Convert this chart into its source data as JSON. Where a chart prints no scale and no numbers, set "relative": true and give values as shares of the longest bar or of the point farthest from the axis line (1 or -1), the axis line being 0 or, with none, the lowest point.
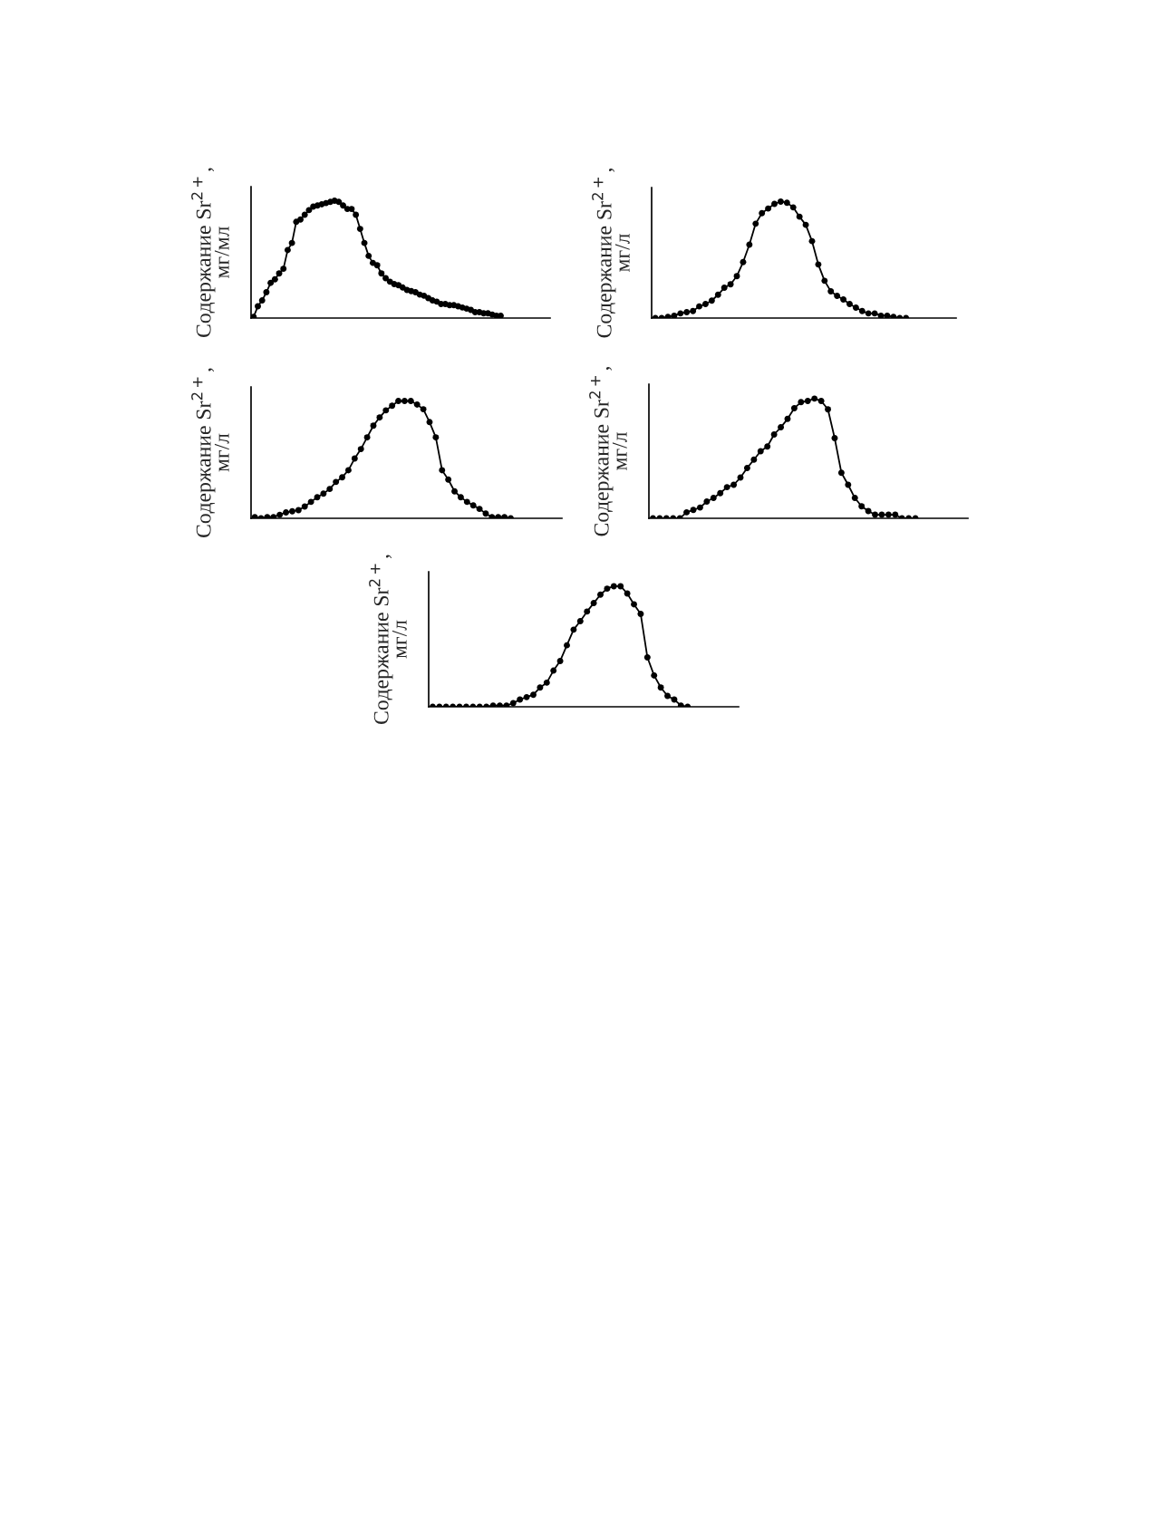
{
  "chart_data": [
    {
      "type": "line",
      "relative": true,
      "ylabel": "Содержание Sr$^{2+}$,\nмг/мл",
      "marker": "circle",
      "line_style": "solid",
      "categories": [
        null,
        null,
        null,
        null,
        null,
        null,
        null,
        null,
        null,
        null,
        null,
        null,
        null,
        null,
        null,
        null,
        null,
        null,
        null,
        null,
        null,
        null,
        null,
        null,
        null,
        null,
        null,
        null,
        null,
        null,
        null,
        null,
        null,
        null,
        null,
        null,
        null,
        null,
        null,
        null,
        null,
        null,
        null,
        null,
        null,
        null,
        null,
        null,
        null,
        null,
        null,
        null,
        null,
        null,
        null,
        null,
        null,
        null,
        null
      ],
      "series": [
        {
          "color": "#000000",
          "values": [
            0.01,
            0.1,
            0.15,
            0.22,
            0.3,
            0.33,
            0.38,
            0.42,
            0.58,
            0.64,
            0.82,
            0.84,
            0.88,
            0.92,
            0.95,
            0.96,
            0.97,
            0.98,
            0.99,
            1.0,
            0.99,
            0.96,
            0.93,
            0.93,
            0.88,
            0.76,
            0.64,
            0.53,
            0.47,
            0.45,
            0.38,
            0.34,
            0.31,
            0.29,
            0.28,
            0.26,
            0.24,
            0.23,
            0.22,
            0.2,
            0.19,
            0.17,
            0.15,
            0.14,
            0.12,
            0.12,
            0.11,
            0.11,
            0.1,
            0.09,
            0.08,
            0.07,
            0.05,
            0.05,
            0.04,
            0.04,
            0.03,
            0.02,
            0.02
          ]
        }
      ]
    },
    {
      "type": "line",
      "relative": true,
      "ylabel": "Содержание Sr$^{2+}$,\nмг/л",
      "marker": "circle",
      "line_style": "solid",
      "categories": [
        null,
        null,
        null,
        null,
        null,
        null,
        null,
        null,
        null,
        null,
        null,
        null,
        null,
        null,
        null,
        null,
        null,
        null,
        null,
        null,
        null,
        null,
        null,
        null,
        null,
        null,
        null,
        null,
        null,
        null,
        null,
        null,
        null,
        null,
        null,
        null,
        null,
        null,
        null,
        null,
        null
      ],
      "series": [
        {
          "color": "#000000",
          "values": [
            0,
            0.0,
            0.01,
            0.02,
            0.04,
            0.05,
            0.06,
            0.1,
            0.12,
            0.15,
            0.2,
            0.26,
            0.29,
            0.36,
            0.48,
            0.63,
            0.81,
            0.9,
            0.94,
            0.98,
            1.0,
            0.99,
            0.95,
            0.87,
            0.8,
            0.66,
            0.46,
            0.32,
            0.23,
            0.19,
            0.16,
            0.12,
            0.09,
            0.06,
            0.04,
            0.04,
            0.02,
            0.02,
            0.01,
            0.0,
            0.0
          ]
        }
      ]
    },
    {
      "type": "line",
      "relative": true,
      "ylabel": "Содержание Sr$^{2+}$,\nмг/л",
      "marker": "circle",
      "line_style": "solid",
      "categories": [
        null,
        null,
        null,
        null,
        null,
        null,
        null,
        null,
        null,
        null,
        null,
        null,
        null,
        null,
        null,
        null,
        null,
        null,
        null,
        null,
        null,
        null,
        null,
        null,
        null,
        null,
        null,
        null,
        null,
        null,
        null,
        null,
        null,
        null,
        null,
        null,
        null,
        null,
        null,
        null,
        null,
        null
      ],
      "series": [
        {
          "color": "#000000",
          "values": [
            0.01,
            0.0,
            0.01,
            0.01,
            0.03,
            0.05,
            0.06,
            0.07,
            0.1,
            0.14,
            0.18,
            0.21,
            0.25,
            0.31,
            0.35,
            0.41,
            0.51,
            0.59,
            0.69,
            0.79,
            0.86,
            0.92,
            0.96,
            1.0,
            1.0,
            1.0,
            0.97,
            0.93,
            0.82,
            0.69,
            0.41,
            0.33,
            0.23,
            0.18,
            0.14,
            0.11,
            0.08,
            0.04,
            0.01,
            0.01,
            0.01,
            0.0
          ]
        }
      ]
    },
    {
      "type": "line",
      "relative": true,
      "ylabel": "Содержание Sr$^{2+}$,\nмг/л",
      "marker": "circle",
      "line_style": "solid",
      "categories": [
        null,
        null,
        null,
        null,
        null,
        null,
        null,
        null,
        null,
        null,
        null,
        null,
        null,
        null,
        null,
        null,
        null,
        null,
        null,
        null,
        null,
        null,
        null,
        null,
        null,
        null,
        null,
        null,
        null,
        null,
        null,
        null,
        null,
        null,
        null,
        null,
        null,
        null,
        null,
        null
      ],
      "series": [
        {
          "color": "#000000",
          "values": [
            0,
            0,
            0,
            0,
            0,
            0.05,
            0.07,
            0.09,
            0.14,
            0.17,
            0.21,
            0.26,
            0.28,
            0.34,
            0.42,
            0.49,
            0.56,
            0.6,
            0.7,
            0.76,
            0.83,
            0.92,
            0.97,
            0.98,
            1.0,
            0.98,
            0.91,
            0.67,
            0.38,
            0.28,
            0.17,
            0.1,
            0.06,
            0.03,
            0.03,
            0.03,
            0.03,
            0,
            0,
            0
          ]
        }
      ]
    },
    {
      "type": "line",
      "relative": true,
      "ylabel": "Содержание Sr$^{2+}$,\nмг/л",
      "marker": "circle",
      "line_style": "solid",
      "categories": [
        null,
        null,
        null,
        null,
        null,
        null,
        null,
        null,
        null,
        null,
        null,
        null,
        null,
        null,
        null,
        null,
        null,
        null,
        null,
        null,
        null,
        null,
        null,
        null,
        null,
        null,
        null,
        null,
        null,
        null,
        null,
        null,
        null,
        null,
        null,
        null,
        null,
        null,
        null
      ],
      "series": [
        {
          "color": "#000000",
          "values": [
            0,
            0,
            0,
            0,
            0,
            0,
            0,
            0,
            0,
            0.01,
            0.01,
            0.01,
            0.03,
            0.06,
            0.08,
            0.1,
            0.16,
            0.2,
            0.3,
            0.38,
            0.51,
            0.64,
            0.71,
            0.79,
            0.86,
            0.93,
            0.98,
            1.0,
            1.0,
            0.94,
            0.85,
            0.77,
            0.41,
            0.26,
            0.16,
            0.09,
            0.06,
            0.01,
            0
          ]
        }
      ]
    }
  ]
}
